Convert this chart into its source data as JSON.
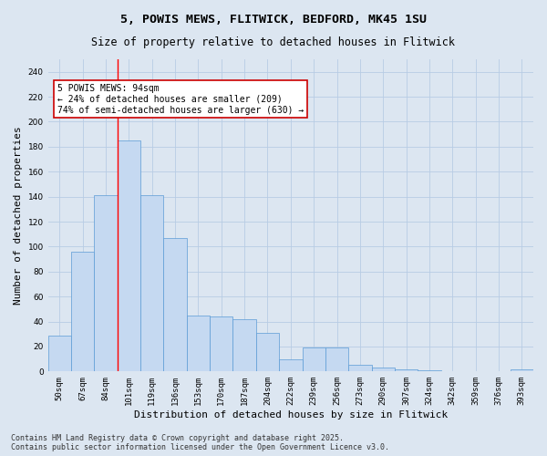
{
  "title1": "5, POWIS MEWS, FLITWICK, BEDFORD, MK45 1SU",
  "title2": "Size of property relative to detached houses in Flitwick",
  "xlabel": "Distribution of detached houses by size in Flitwick",
  "ylabel": "Number of detached properties",
  "categories": [
    "50sqm",
    "67sqm",
    "84sqm",
    "101sqm",
    "119sqm",
    "136sqm",
    "153sqm",
    "170sqm",
    "187sqm",
    "204sqm",
    "222sqm",
    "239sqm",
    "256sqm",
    "273sqm",
    "290sqm",
    "307sqm",
    "324sqm",
    "342sqm",
    "359sqm",
    "376sqm",
    "393sqm"
  ],
  "values": [
    29,
    96,
    141,
    185,
    141,
    107,
    45,
    44,
    42,
    31,
    10,
    19,
    19,
    5,
    3,
    2,
    1,
    0,
    0,
    0,
    2
  ],
  "bar_color": "#c5d9f1",
  "bar_edge_color": "#5b9bd5",
  "bg_color": "#dce6f1",
  "grid_color": "#b8cce4",
  "red_line_x": 2.5,
  "annotation_text": "5 POWIS MEWS: 94sqm\n← 24% of detached houses are smaller (209)\n74% of semi-detached houses are larger (630) →",
  "annotation_box_color": "#ffffff",
  "annotation_box_edge": "#cc0000",
  "ylim": [
    0,
    250
  ],
  "yticks": [
    0,
    20,
    40,
    60,
    80,
    100,
    120,
    140,
    160,
    180,
    200,
    220,
    240
  ],
  "footer": "Contains HM Land Registry data © Crown copyright and database right 2025.\nContains public sector information licensed under the Open Government Licence v3.0.",
  "title_fontsize": 9.5,
  "subtitle_fontsize": 8.5,
  "tick_fontsize": 6.5,
  "ylabel_fontsize": 8,
  "xlabel_fontsize": 8,
  "annotation_fontsize": 7,
  "footer_fontsize": 6
}
